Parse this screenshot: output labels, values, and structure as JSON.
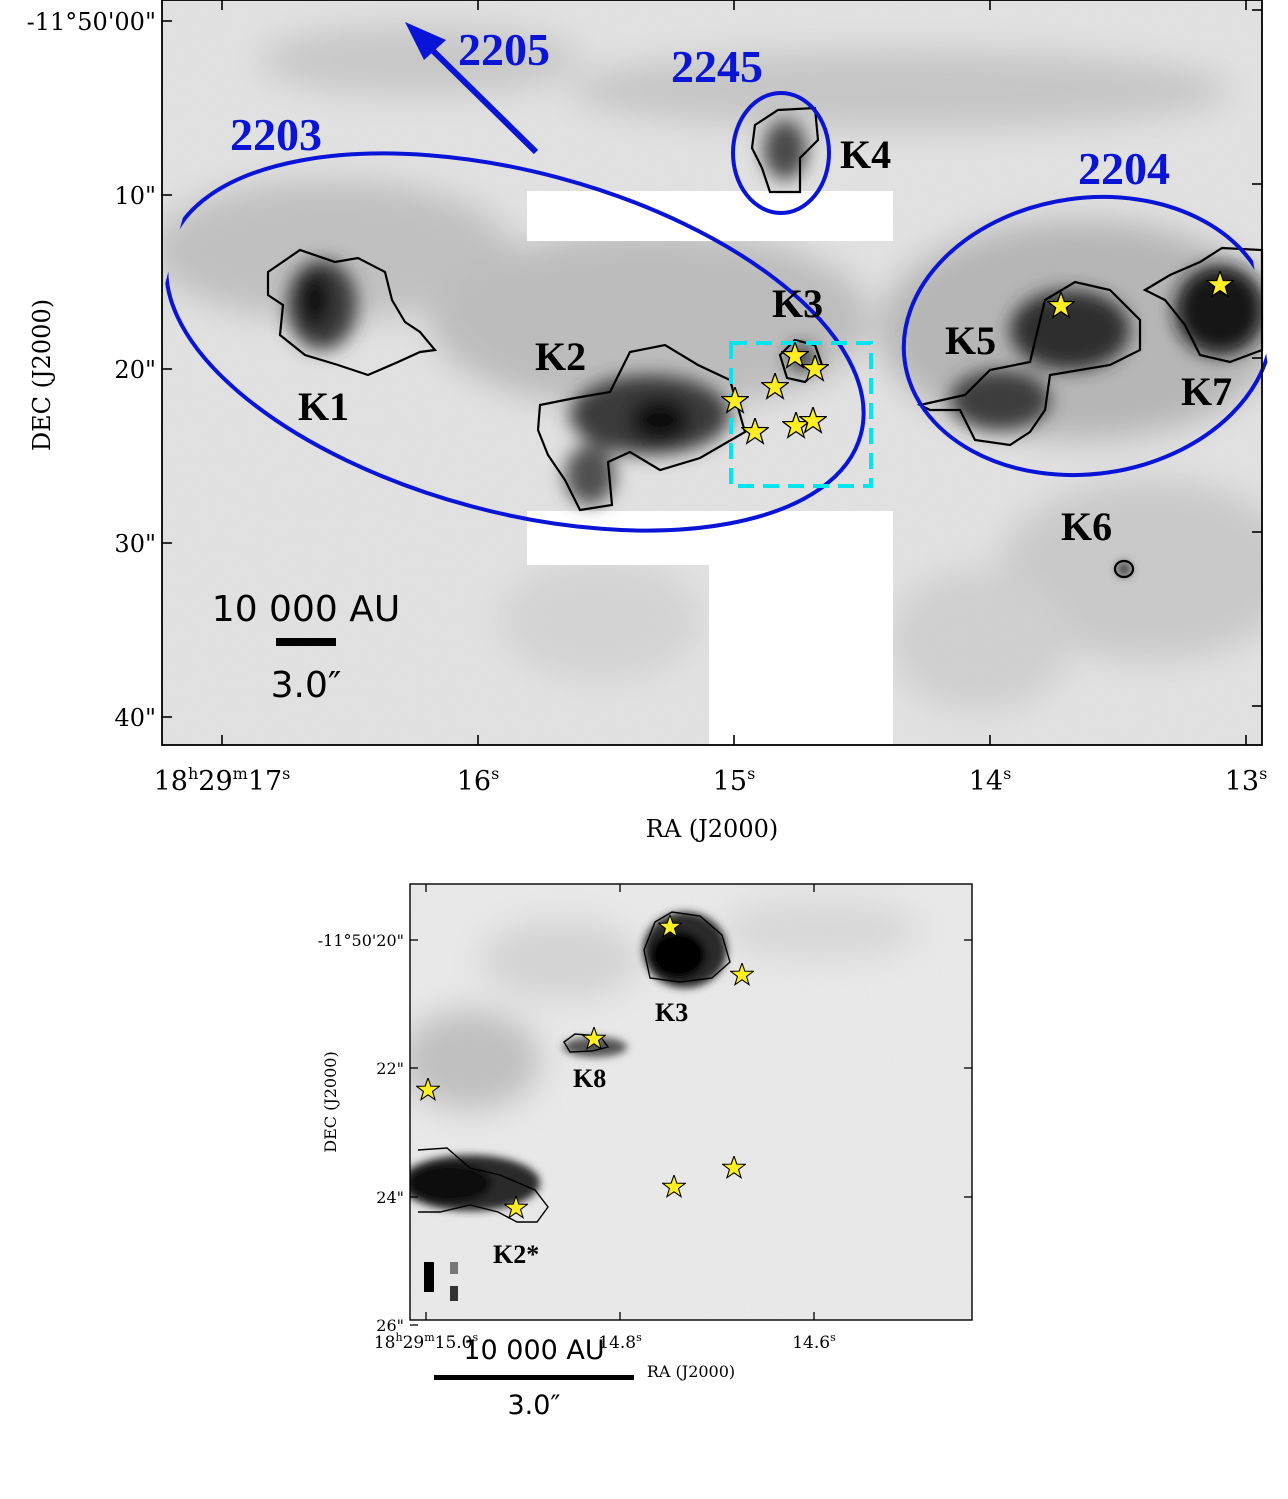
{
  "colors": {
    "ellipse": "#0a14d6",
    "dashed_box": "#00e5ee",
    "star": "#ffee22",
    "contour": "#000000"
  },
  "top_panel": {
    "dec_ticks": [
      "-11°50'00\"",
      "10\"",
      "20\"",
      "30\"",
      "40\""
    ],
    "ra_ticks": [
      {
        "h": "18",
        "m": "29",
        "s": "17"
      },
      {
        "s": "16"
      },
      {
        "s": "15"
      },
      {
        "s": "14"
      },
      {
        "s": "13"
      }
    ],
    "ra_unit_h": "h",
    "ra_unit_m": "m",
    "ra_unit_s": "s",
    "xlabel": "RA (J2000)",
    "ylabel": "DEC (J2000)",
    "region_labels": [
      "2203",
      "2205",
      "2245",
      "2204"
    ],
    "knot_labels": [
      "K1",
      "K2",
      "K3",
      "K4",
      "K5",
      "K6",
      "K7"
    ],
    "scalebar_top": "10 000 AU",
    "scalebar_bottom": "3.0″"
  },
  "bottom_panel": {
    "dec_ticks": [
      "-11°50'20\"",
      "22\"",
      "24\"",
      "26\""
    ],
    "ra_ticks": [
      {
        "h": "18",
        "m": "29",
        "s": "15.0"
      },
      {
        "s": "14.8"
      },
      {
        "s": "14.6"
      }
    ],
    "ra_unit_h": "h",
    "ra_unit_m": "m",
    "ra_unit_s": "s",
    "xlabel": "RA (J2000)",
    "ylabel": "DEC (J2000)",
    "knot_labels": [
      "K3",
      "K8",
      "K2*"
    ],
    "scalebar_top": "10 000 AU",
    "scalebar_bottom": "3.0″"
  }
}
